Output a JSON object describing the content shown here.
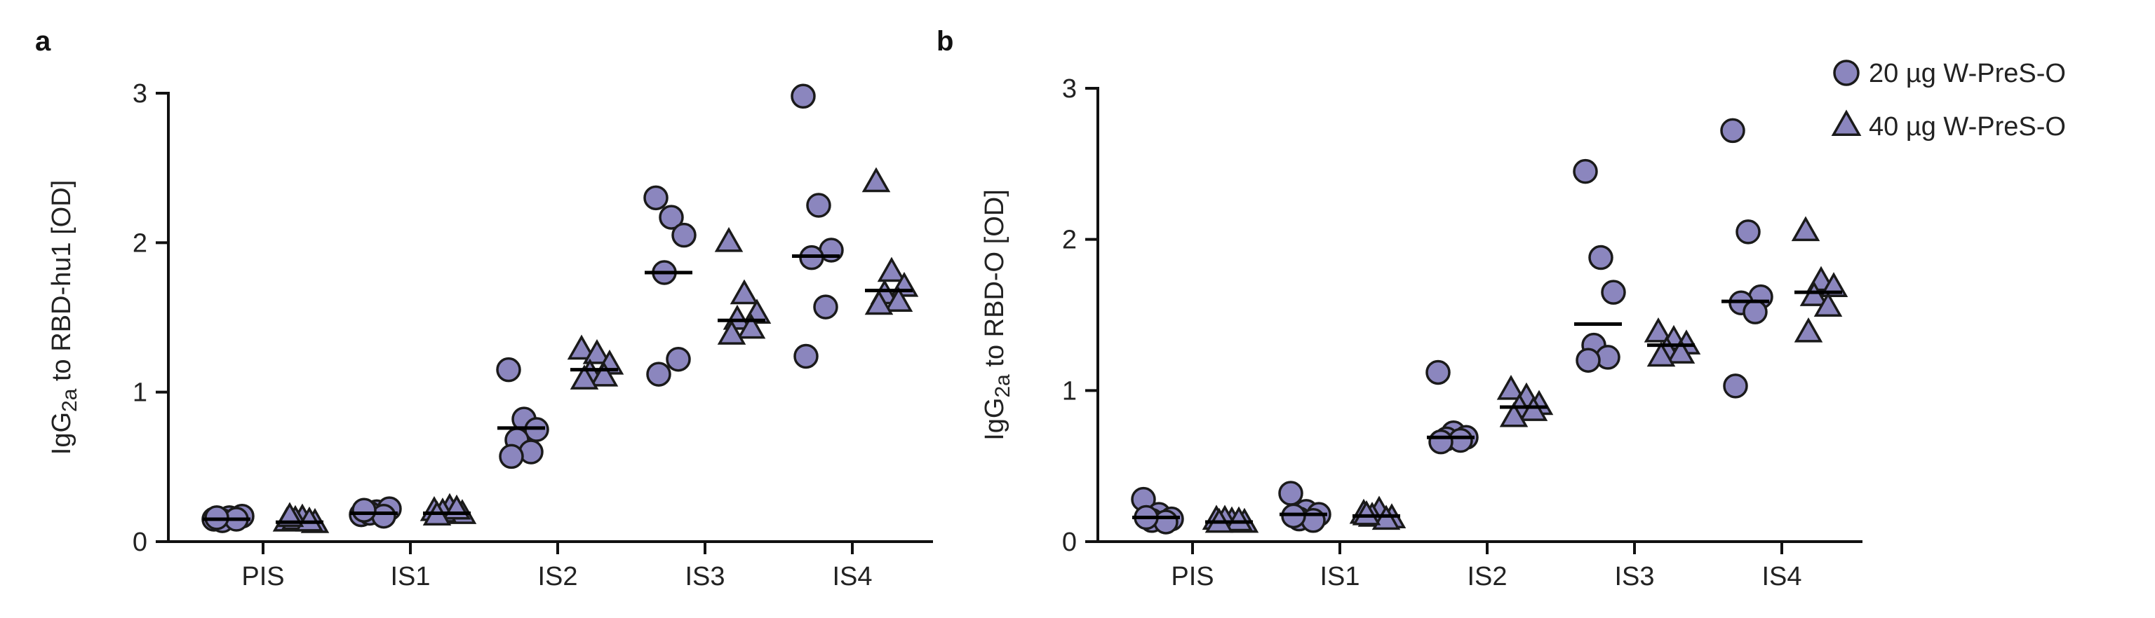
{
  "chart_data": [
    {
      "type": "scatter",
      "panel": "a",
      "ylabel_prefix": "IgG",
      "ylabel_sub": "2a",
      "ylabel_suffix": " to RBD-hu1 [OD]",
      "categories": [
        "PIS",
        "IS1",
        "IS2",
        "IS3",
        "IS4"
      ],
      "ylim": [
        0,
        3
      ],
      "yticks": [
        "0",
        "1",
        "2",
        "3"
      ],
      "grid": false,
      "series": [
        {
          "name": "20 µg W-PreS-O",
          "marker": "circle",
          "points": [
            [
              0.15,
              0.16,
              0.17,
              0.14,
              0.15,
              0.16
            ],
            [
              0.18,
              0.2,
              0.22,
              0.19,
              0.17,
              0.21
            ],
            [
              1.15,
              0.82,
              0.75,
              0.68,
              0.6,
              0.57
            ],
            [
              2.3,
              2.17,
              2.05,
              1.8,
              1.22,
              1.12
            ],
            [
              2.98,
              2.25,
              1.95,
              1.9,
              1.57,
              1.24
            ]
          ],
          "medians": [
            0.15,
            0.19,
            0.76,
            1.8,
            1.91
          ]
        },
        {
          "name": "40 µg W-PreS-O",
          "marker": "triangle",
          "points": [
            [
              0.13,
              0.15,
              0.12,
              0.14,
              0.13,
              0.16
            ],
            [
              0.2,
              0.22,
              0.18,
              0.19,
              0.21,
              0.17
            ],
            [
              1.28,
              1.25,
              1.18,
              1.12,
              1.1,
              1.08
            ],
            [
              2.0,
              1.65,
              1.52,
              1.48,
              1.42,
              1.38
            ],
            [
              2.4,
              1.8,
              1.7,
              1.65,
              1.6,
              1.58
            ]
          ],
          "medians": [
            0.13,
            0.19,
            1.15,
            1.48,
            1.68
          ]
        }
      ]
    },
    {
      "type": "scatter",
      "panel": "b",
      "ylabel_prefix": "IgG",
      "ylabel_sub": "2a",
      "ylabel_suffix": " to RBD-O [OD]",
      "categories": [
        "PIS",
        "IS1",
        "IS2",
        "IS3",
        "IS4"
      ],
      "ylim": [
        0,
        3
      ],
      "yticks": [
        "0",
        "1",
        "2",
        "3"
      ],
      "grid": false,
      "series": [
        {
          "name": "20 µg W-PreS-O",
          "marker": "circle",
          "points": [
            [
              0.28,
              0.18,
              0.15,
              0.14,
              0.13,
              0.16
            ],
            [
              0.32,
              0.2,
              0.18,
              0.15,
              0.14,
              0.17
            ],
            [
              1.12,
              0.72,
              0.69,
              0.68,
              0.67,
              0.66
            ],
            [
              2.45,
              1.88,
              1.65,
              1.3,
              1.22,
              1.2
            ],
            [
              2.72,
              2.05,
              1.62,
              1.58,
              1.52,
              1.03
            ]
          ],
          "medians": [
            0.16,
            0.18,
            0.69,
            1.44,
            1.59
          ]
        },
        {
          "name": "40 µg W-PreS-O",
          "marker": "triangle",
          "points": [
            [
              0.14,
              0.13,
              0.12,
              0.14,
              0.13,
              0.12
            ],
            [
              0.18,
              0.2,
              0.15,
              0.16,
              0.14,
              0.17
            ],
            [
              1.0,
              0.95,
              0.9,
              0.88,
              0.86,
              0.82
            ],
            [
              1.38,
              1.33,
              1.3,
              1.26,
              1.24,
              1.22
            ],
            [
              2.05,
              1.72,
              1.68,
              1.62,
              1.55,
              1.38
            ]
          ],
          "medians": [
            0.13,
            0.17,
            0.89,
            1.3,
            1.65
          ]
        }
      ]
    }
  ],
  "legend": {
    "placement": "top-right",
    "items": [
      {
        "label": "20 µg W-PreS-O",
        "marker": "circle"
      },
      {
        "label": "40 µg W-PreS-O",
        "marker": "triangle"
      }
    ]
  },
  "colors": {
    "marker_fill": "#8B86BE",
    "marker_stroke": "#1A1A1A",
    "axis": "#111111"
  }
}
